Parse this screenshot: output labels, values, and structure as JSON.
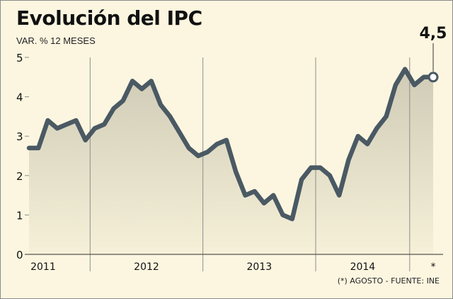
{
  "title": "Evolución del IPC",
  "subtitle": "VAR. % 12 MESES",
  "source": "(*) AGOSTO - FUENTE: INE",
  "colors": {
    "background": "#fcf6e0",
    "line": "#4a5963",
    "area_top": "#cfcbb6",
    "area_bottom": "#f6f0d8",
    "grid": "#8c8c8c",
    "text": "#111111"
  },
  "chart_data": {
    "type": "area",
    "title": "Evolución del IPC",
    "subtitle": "VAR. % 12 MESES",
    "xlabel": "",
    "ylabel": "",
    "ylim": [
      0,
      5
    ],
    "y_ticks": [
      0,
      1,
      2,
      3,
      4,
      5
    ],
    "year_labels": [
      "2011",
      "2012",
      "2013",
      "2014",
      "*"
    ],
    "highlight": {
      "label": "4,5",
      "value": 4.5,
      "index": 43
    },
    "series": [
      {
        "values": [
          2.7,
          2.7,
          3.4,
          3.2,
          3.3,
          3.4,
          2.9,
          3.2,
          3.3,
          3.7,
          3.9,
          4.4,
          4.2,
          4.4,
          3.8,
          3.5,
          3.1,
          2.7,
          2.5,
          2.6,
          2.8,
          2.9,
          2.1,
          1.5,
          1.6,
          1.3,
          1.5,
          1.0,
          0.9,
          1.9,
          2.2,
          2.2,
          2.0,
          1.5,
          2.4,
          3.0,
          2.8,
          3.2,
          3.5,
          4.3,
          4.7,
          4.3,
          4.5,
          4.5
        ]
      }
    ]
  }
}
